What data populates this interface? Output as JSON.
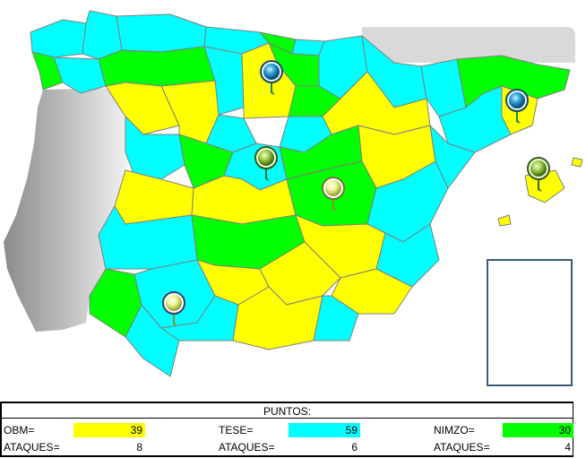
{
  "colors": {
    "obm": "#ffff00",
    "tese": "#00ffff",
    "nimzo": "#00ff00",
    "pin_blue": "#1f8fbf",
    "pin_green": "#9acd32",
    "pin_yellow": "#e6f07a",
    "portugal": "#c8c8c8",
    "sea_panel": "#d9d9d9",
    "inset_border": "#3b5a7a"
  },
  "pins": [
    {
      "name": "pin-burgos",
      "color": "blue"
    },
    {
      "name": "pin-barcelona",
      "color": "blue"
    },
    {
      "name": "pin-madrid",
      "color": "green"
    },
    {
      "name": "pin-cuenca",
      "color": "yellow"
    },
    {
      "name": "pin-baleares",
      "color": "green"
    },
    {
      "name": "pin-sevilla",
      "color": "yellow"
    }
  ],
  "scoreboard": {
    "title": "PUNTOS:",
    "players": [
      {
        "label": "OBM=",
        "points": "39",
        "attacks_label": "ATAQUES=",
        "attacks": "8"
      },
      {
        "label": "TESE=",
        "points": "59",
        "attacks_label": "ATAQUES=",
        "attacks": "6"
      },
      {
        "label": "NIMZO=",
        "points": "30",
        "attacks_label": "ATAQUES=",
        "attacks": "4"
      }
    ]
  }
}
